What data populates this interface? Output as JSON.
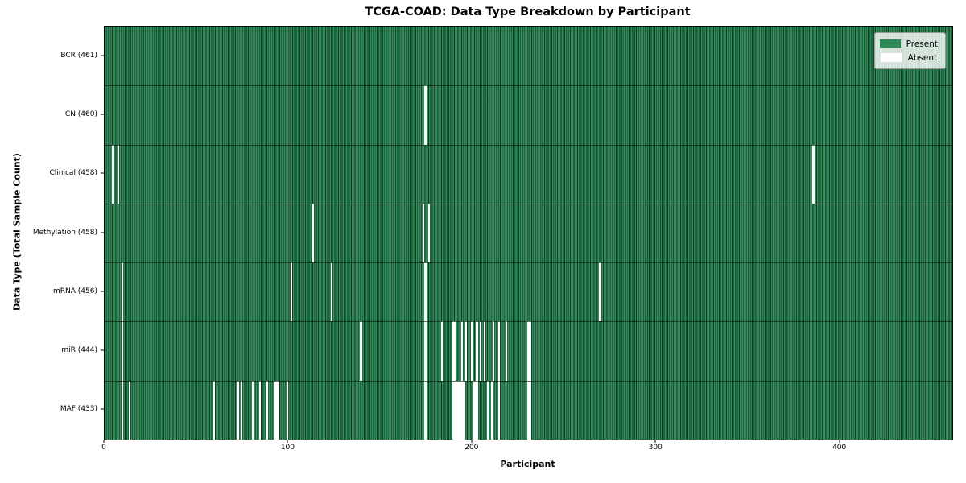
{
  "chart_data": {
    "type": "heatmap",
    "title": "TCGA-COAD: Data Type Breakdown by Participant",
    "xlabel": "Participant",
    "ylabel": "Data Type (Total Sample Count)",
    "n_participants": 461,
    "x_ticks": [
      0,
      100,
      200,
      300,
      400
    ],
    "x_range": [
      0,
      461
    ],
    "grid": false,
    "legend_position": "upper right",
    "colors": {
      "present": "#2e8b57",
      "absent": "#ffffff",
      "bar_edge": "#143d27",
      "row_separator": "#0b2014",
      "spine": "#000000",
      "legend_border": "#999999"
    },
    "legend": [
      {
        "label": "Present",
        "color": "#2e8b57"
      },
      {
        "label": "Absent",
        "color": "#ffffff"
      }
    ],
    "rows": [
      {
        "data_type": "BCR",
        "count": 461,
        "label": "BCR (461)",
        "absent_participants": []
      },
      {
        "data_type": "CN",
        "count": 460,
        "label": "CN (460)",
        "absent_participants": [
          174
        ]
      },
      {
        "data_type": "Clinical",
        "count": 458,
        "label": "Clinical (458)",
        "absent_participants": [
          4,
          7,
          385
        ]
      },
      {
        "data_type": "Methylation",
        "count": 458,
        "label": "Methylation (458)",
        "absent_participants": [
          113,
          173,
          176
        ]
      },
      {
        "data_type": "mRNA",
        "count": 456,
        "label": "mRNA (456)",
        "absent_participants": [
          9,
          101,
          123,
          174,
          269
        ]
      },
      {
        "data_type": "miR",
        "count": 444,
        "label": "miR (444)",
        "absent_participants": [
          9,
          139,
          174,
          183,
          189,
          190,
          194,
          196,
          199,
          202,
          204,
          206,
          211,
          214,
          218,
          230,
          231
        ]
      },
      {
        "data_type": "MAF",
        "count": 433,
        "label": "MAF (433)",
        "absent_participants": [
          9,
          13,
          59,
          72,
          74,
          80,
          84,
          88,
          92,
          93,
          94,
          99,
          174,
          189,
          190,
          191,
          192,
          193,
          194,
          195,
          200,
          201,
          202,
          208,
          210,
          214,
          230,
          231
        ]
      }
    ]
  }
}
